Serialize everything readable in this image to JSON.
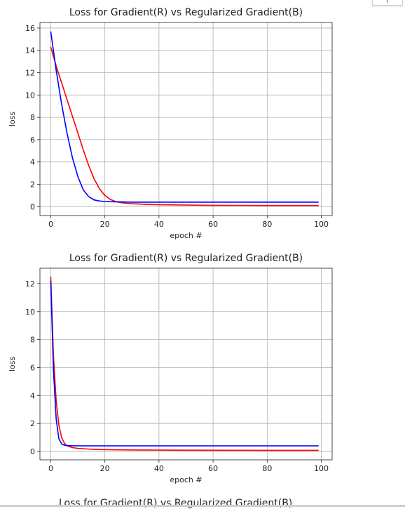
{
  "chart_data": [
    {
      "type": "line",
      "title": "Loss for Gradient(R) vs Regularized Gradient(B)",
      "xlabel": "epoch #",
      "ylabel": "loss",
      "xlim": [
        -4,
        104
      ],
      "ylim": [
        -0.8,
        16.5
      ],
      "xticks": [
        0,
        20,
        40,
        60,
        80,
        100
      ],
      "yticks": [
        0,
        2,
        4,
        6,
        8,
        10,
        12,
        14,
        16
      ],
      "grid": true,
      "series": [
        {
          "color": "#ff0000",
          "x": [
            0,
            2,
            4,
            6,
            8,
            10,
            12,
            14,
            16,
            18,
            20,
            22,
            24,
            26,
            28,
            30,
            35,
            40,
            50,
            60,
            70,
            80,
            90,
            99
          ],
          "y": [
            14.3,
            12.6,
            11.1,
            9.6,
            8.1,
            6.6,
            5.1,
            3.7,
            2.5,
            1.6,
            1.0,
            0.65,
            0.45,
            0.35,
            0.3,
            0.26,
            0.2,
            0.17,
            0.14,
            0.12,
            0.11,
            0.1,
            0.1,
            0.1
          ]
        },
        {
          "color": "#0000ff",
          "x": [
            0,
            2,
            4,
            6,
            8,
            10,
            12,
            14,
            16,
            18,
            20,
            22,
            24,
            26,
            28,
            30,
            35,
            40,
            50,
            60,
            70,
            80,
            90,
            99
          ],
          "y": [
            15.7,
            12.2,
            9.2,
            6.6,
            4.4,
            2.7,
            1.5,
            0.9,
            0.6,
            0.5,
            0.46,
            0.44,
            0.43,
            0.42,
            0.41,
            0.4,
            0.4,
            0.4,
            0.4,
            0.4,
            0.4,
            0.4,
            0.4,
            0.4
          ]
        }
      ]
    },
    {
      "type": "line",
      "title": "Loss for Gradient(R) vs Regularized Gradient(B)",
      "xlabel": "epoch #",
      "ylabel": "loss",
      "xlim": [
        -4,
        104
      ],
      "ylim": [
        -0.6,
        13.1
      ],
      "xticks": [
        0,
        20,
        40,
        60,
        80,
        100
      ],
      "yticks": [
        0,
        2,
        4,
        6,
        8,
        10,
        12
      ],
      "grid": true,
      "series": [
        {
          "color": "#ff0000",
          "x": [
            0,
            1,
            2,
            3,
            4,
            5,
            6,
            8,
            10,
            15,
            20,
            30,
            40,
            60,
            80,
            99
          ],
          "y": [
            12.5,
            6.8,
            3.6,
            1.9,
            1.0,
            0.6,
            0.4,
            0.28,
            0.22,
            0.16,
            0.13,
            0.11,
            0.1,
            0.09,
            0.08,
            0.08
          ],
          "comment": ""
        },
        {
          "color": "#0000ff",
          "x": [
            0,
            1,
            2,
            3,
            4,
            5,
            6,
            8,
            10,
            20,
            40,
            60,
            80,
            99
          ],
          "y": [
            12.2,
            5.8,
            2.3,
            0.9,
            0.55,
            0.45,
            0.42,
            0.41,
            0.4,
            0.4,
            0.4,
            0.4,
            0.4,
            0.4
          ]
        }
      ]
    }
  ],
  "next_chart_title": "Loss for Gradient(R) vs Regularized Gradient(B)"
}
